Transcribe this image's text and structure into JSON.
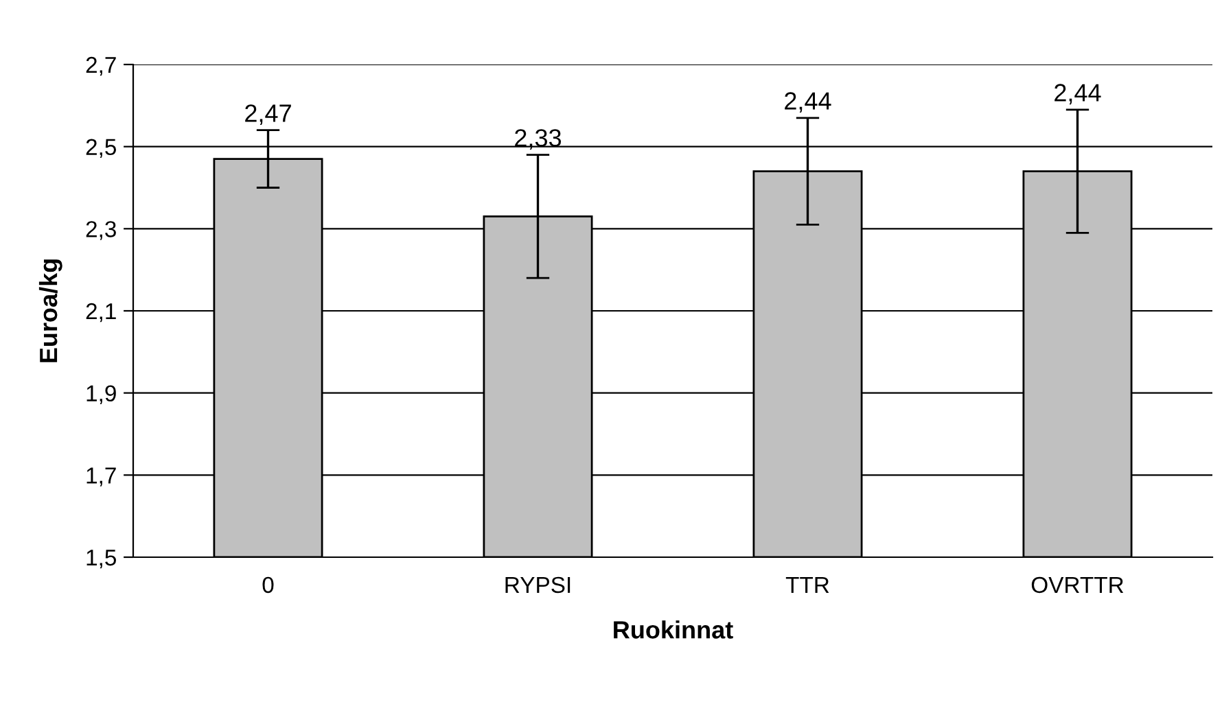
{
  "chart_data": {
    "type": "bar",
    "xlabel": "Ruokinnat",
    "ylabel": "Euroa/kg",
    "categories": [
      "0",
      "RYPSI",
      "TTR",
      "OVRTTR"
    ],
    "values": [
      2.47,
      2.33,
      2.44,
      2.44
    ],
    "errors": [
      0.07,
      0.15,
      0.13,
      0.15
    ],
    "value_labels": [
      "2,47",
      "2,33",
      "2,44",
      "2,44"
    ],
    "color": "#c0c0c0",
    "ylim": [
      1.5,
      2.7
    ],
    "yticks": [
      {
        "value": 1.5,
        "label": "1,5"
      },
      {
        "value": 1.7,
        "label": "1,7"
      },
      {
        "value": 1.9,
        "label": "1,9"
      },
      {
        "value": 2.1,
        "label": "2,1"
      },
      {
        "value": 2.3,
        "label": "2,3"
      },
      {
        "value": 2.5,
        "label": "2,5"
      },
      {
        "value": 2.7,
        "label": "2,7"
      }
    ],
    "grid": "y",
    "legend": false
  }
}
